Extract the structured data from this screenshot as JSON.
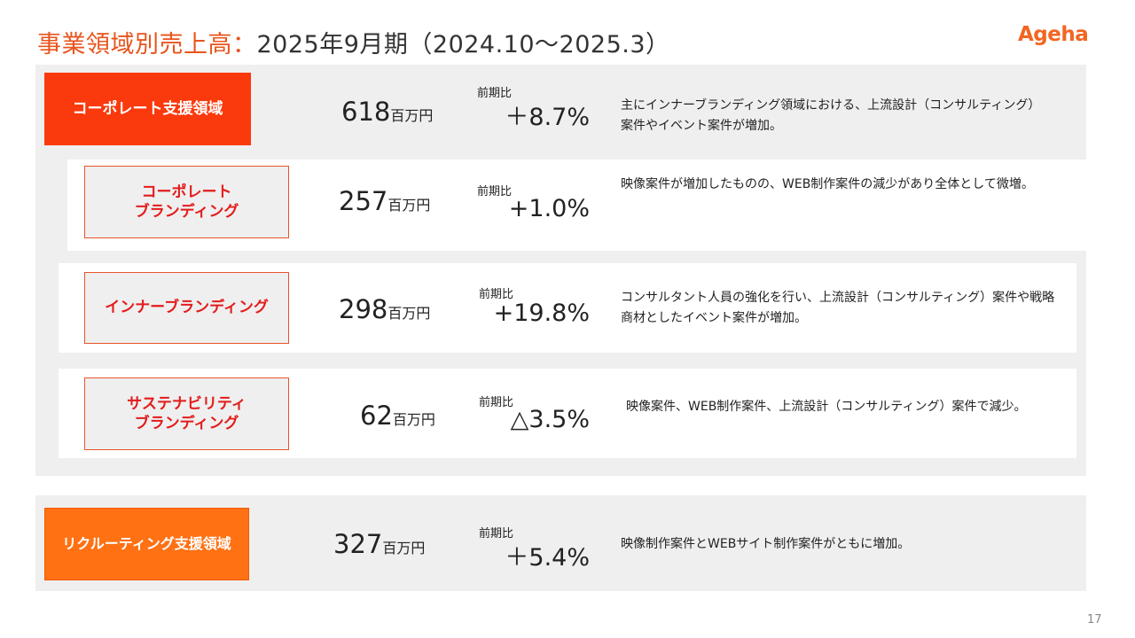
{
  "title": {
    "accent": "事業領域別売上高：",
    "rest": "2025年9月期（2024.10～2025.3）"
  },
  "logo": "Ageha",
  "page_number": "17",
  "unit": "百万円",
  "yoy_label": "前期比",
  "segments": [
    {
      "name": "コーポレート支援領域",
      "amount": "618",
      "yoy": "＋8.7%",
      "desc": "主にインナーブランディング領域における、上流設計（コンサルティング）案件やイベント案件が増加。"
    },
    {
      "name_line1": "コーポレート",
      "name_line2": "ブランディング",
      "amount": "257",
      "yoy": "+1.0%",
      "desc": "映像案件が増加したものの、WEB制作案件の減少があり全体として微増。"
    },
    {
      "name": "インナーブランディング",
      "amount": "298",
      "yoy": "+19.8%",
      "desc": "コンサルタント人員の強化を行い、上流設計（コンサルティング）案件や戦略商材としたイベント案件が増加。"
    },
    {
      "name_line1": "サステナビリティ",
      "name_line2": "ブランディング",
      "amount": "62",
      "yoy": "△3.5%",
      "desc": "映像案件、WEB制作案件、上流設計（コンサルティング）案件で減少。"
    },
    {
      "name": "リクルーティング支援領域",
      "amount": "327",
      "yoy": "＋5.4%",
      "desc": "映像制作案件とWEBサイト制作案件がともに増加。"
    }
  ],
  "colors": {
    "accent": "#e8541c",
    "solid_tag": "#fa3a0c",
    "recruit_tag": "#ff7113",
    "outline_text": "#e41b1b",
    "panel": "#efefef"
  }
}
